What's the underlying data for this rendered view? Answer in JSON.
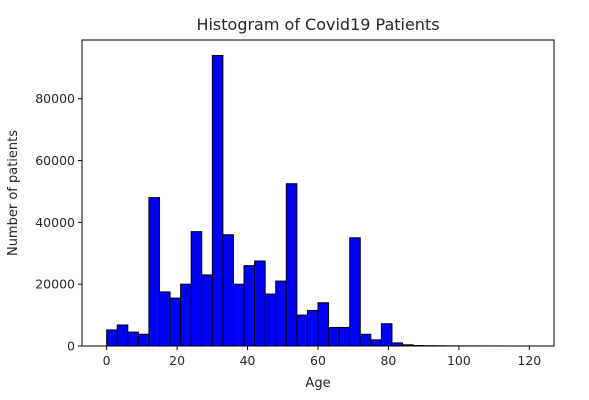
{
  "chart_data": {
    "type": "bar",
    "subtype": "histogram",
    "title": "Histogram of Covid19 Patients",
    "xlabel": "Age",
    "ylabel": "Number of patients",
    "bin_width": 3,
    "bin_starts": [
      0,
      3,
      6,
      9,
      12,
      15,
      18,
      21,
      24,
      27,
      30,
      33,
      36,
      39,
      42,
      45,
      48,
      51,
      54,
      57,
      60,
      63,
      66,
      69,
      72,
      75,
      78,
      81,
      84,
      87,
      90,
      93,
      96,
      99,
      102,
      105,
      108,
      111,
      114,
      117,
      120
    ],
    "values": [
      5200,
      6800,
      4500,
      3800,
      48000,
      17500,
      15500,
      20000,
      37000,
      23000,
      94000,
      36000,
      20000,
      26000,
      27500,
      16800,
      21000,
      52500,
      10000,
      11500,
      14000,
      6000,
      6000,
      35000,
      3800,
      2000,
      7200,
      1000,
      400,
      150,
      100,
      80,
      50,
      40,
      30,
      25,
      20,
      15,
      10,
      10,
      10
    ],
    "xlim": [
      -7,
      127
    ],
    "ylim": [
      0,
      99000
    ],
    "xticks": [
      0,
      20,
      40,
      60,
      80,
      100,
      120
    ],
    "yticks": [
      0,
      20000,
      40000,
      60000,
      80000
    ],
    "bar_color": "#0000ff",
    "edge_color": "#000000",
    "grid": false,
    "legend": "none"
  }
}
